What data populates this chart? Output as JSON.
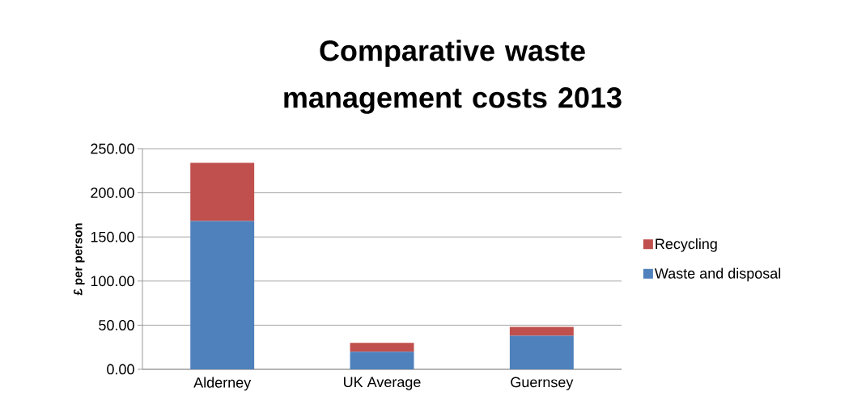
{
  "chart_data": {
    "type": "bar",
    "title": "Comparative waste management costs 2013",
    "ylabel": "£ per person",
    "stacked": true,
    "categories": [
      "Alderney",
      "UK Average",
      "Guernsey"
    ],
    "series": [
      {
        "name": "Waste and disposal",
        "color": "#4f81bd",
        "values": [
          168,
          20,
          38
        ]
      },
      {
        "name": "Recycling",
        "color": "#c0504d",
        "values": [
          66,
          10,
          10
        ]
      }
    ],
    "ylim": [
      0,
      250
    ],
    "yticks": [
      {
        "value": 0,
        "label": "0.00"
      },
      {
        "value": 50,
        "label": "50.00"
      },
      {
        "value": 100,
        "label": "100.00"
      },
      {
        "value": 150,
        "label": "150.00"
      },
      {
        "value": 200,
        "label": "200.00"
      },
      {
        "value": 250,
        "label": "250.00"
      }
    ],
    "grid": "y",
    "legend": "right"
  }
}
